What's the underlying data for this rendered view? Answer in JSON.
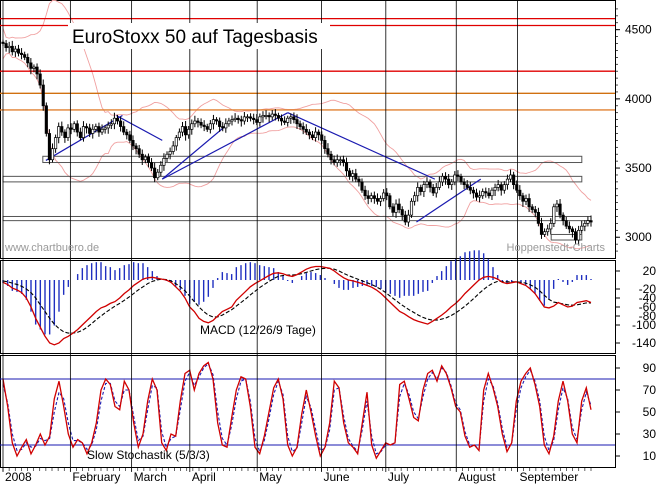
{
  "chart_data": [
    {
      "panel": "price",
      "type": "candlestick",
      "title": "EuroStoxx 50 auf Tagesbasis",
      "source_left": "www.chartbuero.de",
      "source_right": "Hoppenstedt-Charts",
      "yticks": [
        3000,
        3500,
        4000,
        4500
      ],
      "ylim": [
        2850,
        4700
      ],
      "xlim": [
        0,
        192
      ],
      "months": [
        {
          "label": "2008",
          "day": 0
        },
        {
          "label": "February",
          "day": 22
        },
        {
          "label": "March",
          "day": 42
        },
        {
          "label": "April",
          "day": 61
        },
        {
          "label": "May",
          "day": 83
        },
        {
          "label": "June",
          "day": 104
        },
        {
          "label": "July",
          "day": 125
        },
        {
          "label": "August",
          "day": 148
        },
        {
          "label": "September",
          "day": 168
        }
      ],
      "horizontal_lines": [
        {
          "y": 4580,
          "color": "#e00000"
        },
        {
          "y": 4530,
          "color": "#e00000"
        },
        {
          "y": 4200,
          "color": "#e00000"
        },
        {
          "y": 4040,
          "color": "#d07010"
        },
        {
          "y": 3920,
          "color": "#e08030"
        }
      ],
      "support_boxes": [
        {
          "x0": 13,
          "x1": 189,
          "y0": 3540,
          "y1": 3585
        },
        {
          "x0": 0,
          "x1": 189,
          "y0": 3400,
          "y1": 3440
        },
        {
          "x0": 0,
          "x1": 192,
          "y0": 3120,
          "y1": 3150
        },
        {
          "x0": 179,
          "x1": 189,
          "y0": 2980,
          "y1": 3020
        }
      ],
      "trend_lines": [
        {
          "x0": 14,
          "y0": 3555,
          "x1": 39,
          "y1": 3880
        },
        {
          "x0": 52,
          "y0": 3420,
          "x1": 93,
          "y1": 3900
        },
        {
          "x0": 52,
          "y0": 3420,
          "x1": 73,
          "y1": 3810
        },
        {
          "x0": 93,
          "y0": 3900,
          "x1": 141,
          "y1": 3420
        },
        {
          "x0": 135,
          "y0": 3110,
          "x1": 156,
          "y1": 3420
        },
        {
          "x0": 37,
          "y0": 3880,
          "x1": 52,
          "y1": 3700
        }
      ],
      "close": [
        4400,
        4370,
        4380,
        4340,
        4360,
        4330,
        4320,
        4300,
        4260,
        4220,
        4230,
        4180,
        4100,
        3950,
        3750,
        3560,
        3640,
        3720,
        3800,
        3760,
        3720,
        3790,
        3780,
        3820,
        3760,
        3720,
        3800,
        3790,
        3750,
        3780,
        3800,
        3760,
        3780,
        3790,
        3810,
        3820,
        3860,
        3840,
        3800,
        3760,
        3740,
        3700,
        3660,
        3640,
        3600,
        3560,
        3580,
        3540,
        3500,
        3430,
        3470,
        3520,
        3570,
        3600,
        3620,
        3660,
        3720,
        3760,
        3800,
        3740,
        3780,
        3820,
        3840,
        3830,
        3810,
        3800,
        3780,
        3820,
        3850,
        3840,
        3800,
        3790,
        3820,
        3840,
        3850,
        3860,
        3850,
        3840,
        3870,
        3870,
        3860,
        3850,
        3830,
        3870,
        3880,
        3880,
        3870,
        3890,
        3880,
        3860,
        3840,
        3830,
        3860,
        3870,
        3850,
        3820,
        3800,
        3780,
        3760,
        3740,
        3720,
        3760,
        3740,
        3700,
        3640,
        3600,
        3560,
        3540,
        3560,
        3560,
        3540,
        3480,
        3440,
        3460,
        3420,
        3400,
        3340,
        3300,
        3280,
        3300,
        3280,
        3260,
        3280,
        3320,
        3300,
        3220,
        3180,
        3240,
        3200,
        3160,
        3110,
        3160,
        3260,
        3300,
        3360,
        3330,
        3380,
        3400,
        3360,
        3320,
        3360,
        3400,
        3440,
        3420,
        3380,
        3400,
        3450,
        3440,
        3400,
        3380,
        3360,
        3340,
        3320,
        3290,
        3300,
        3330,
        3320,
        3300,
        3340,
        3360,
        3380,
        3340,
        3380,
        3420,
        3450,
        3380,
        3340,
        3300,
        3260,
        3280,
        3220,
        3200,
        3180,
        3100,
        3020,
        3040,
        3060,
        3100,
        3220,
        3240,
        3160,
        3120,
        3080,
        3060,
        3040,
        2980,
        3050,
        3080,
        3100,
        3120,
        3110
      ]
    },
    {
      "panel": "macd",
      "type": "macd",
      "title": "MACD (12/26/9 Tage)",
      "yticks": [
        20,
        -20,
        -40,
        -60,
        -80,
        -100,
        -140
      ],
      "ylim": [
        -160,
        40
      ],
      "macd_line": [
        -5,
        -10,
        -18,
        -22,
        -28,
        -40,
        -60,
        -85,
        -105,
        -125,
        -140,
        -144,
        -140,
        -130,
        -125,
        -118,
        -110,
        -100,
        -90,
        -80,
        -70,
        -62,
        -58,
        -52,
        -48,
        -40,
        -30,
        -22,
        -12,
        -5,
        2,
        5,
        6,
        4,
        2,
        0,
        -5,
        -15,
        -25,
        -40,
        -60,
        -70,
        -85,
        -92,
        -95,
        -90,
        -80,
        -70,
        -65,
        -60,
        -45,
        -35,
        -25,
        -15,
        -8,
        -2,
        4,
        10,
        15,
        16,
        14,
        10,
        8,
        12,
        18,
        24,
        28,
        30,
        30,
        28,
        26,
        20,
        12,
        5,
        0,
        -2,
        -5,
        -8,
        -12,
        -16,
        -22,
        -30,
        -40,
        -50,
        -60,
        -70,
        -75,
        -82,
        -88,
        -92,
        -95,
        -98,
        -92,
        -85,
        -78,
        -70,
        -60,
        -52,
        -42,
        -30,
        -20,
        -10,
        0,
        6,
        8,
        6,
        2,
        -5,
        -8,
        -6,
        -4,
        -8,
        -12,
        -20,
        -30,
        -45,
        -60,
        -62,
        -58,
        -50,
        -55,
        -60,
        -58,
        -50,
        -48,
        -46,
        -50
      ],
      "signal_line": [
        -2,
        -4,
        -7,
        -10,
        -14,
        -20,
        -28,
        -40,
        -55,
        -70,
        -85,
        -98,
        -108,
        -115,
        -118,
        -118,
        -116,
        -112,
        -105,
        -97,
        -88,
        -80,
        -72,
        -65,
        -58,
        -52,
        -45,
        -38,
        -30,
        -22,
        -15,
        -8,
        -3,
        0,
        2,
        1,
        -2,
        -8,
        -15,
        -24,
        -36,
        -48,
        -60,
        -70,
        -78,
        -82,
        -82,
        -78,
        -72,
        -66,
        -58,
        -50,
        -42,
        -33,
        -25,
        -17,
        -10,
        -3,
        3,
        8,
        10,
        11,
        11,
        12,
        14,
        17,
        20,
        23,
        25,
        26,
        26,
        24,
        20,
        15,
        10,
        6,
        2,
        -2,
        -6,
        -10,
        -15,
        -21,
        -28,
        -36,
        -44,
        -52,
        -59,
        -66,
        -72,
        -78,
        -83,
        -87,
        -89,
        -89,
        -87,
        -84,
        -79,
        -73,
        -66,
        -58,
        -49,
        -40,
        -30,
        -21,
        -13,
        -7,
        -3,
        -3,
        -4,
        -4,
        -4,
        -5,
        -7,
        -11,
        -16,
        -24,
        -34,
        -43,
        -49,
        -51,
        -53,
        -55,
        -56,
        -55,
        -53,
        -51,
        -51
      ]
    },
    {
      "panel": "stochastic",
      "type": "line",
      "title": "Slow Stochastik (5/3/3)",
      "yticks": [
        90,
        70,
        50,
        30,
        10
      ],
      "ylim": [
        0,
        100
      ],
      "levels": [
        80,
        20
      ],
      "k_line": [
        80,
        55,
        22,
        10,
        18,
        25,
        12,
        20,
        30,
        20,
        28,
        62,
        78,
        55,
        30,
        18,
        25,
        22,
        12,
        22,
        40,
        70,
        80,
        75,
        55,
        52,
        78,
        70,
        40,
        18,
        30,
        60,
        80,
        70,
        22,
        15,
        30,
        28,
        60,
        85,
        88,
        70,
        85,
        92,
        95,
        80,
        40,
        20,
        18,
        45,
        70,
        82,
        80,
        55,
        18,
        12,
        28,
        50,
        72,
        80,
        62,
        20,
        10,
        18,
        48,
        70,
        50,
        28,
        10,
        18,
        40,
        78,
        72,
        40,
        22,
        18,
        12,
        40,
        68,
        20,
        8,
        15,
        22,
        20,
        22,
        75,
        78,
        62,
        45,
        42,
        70,
        85,
        88,
        78,
        92,
        85,
        72,
        55,
        50,
        28,
        18,
        20,
        15,
        70,
        85,
        72,
        55,
        30,
        14,
        22,
        60,
        78,
        85,
        90,
        75,
        55,
        20,
        12,
        28,
        60,
        78,
        60,
        30,
        22,
        60,
        72,
        52
      ],
      "d_line": [
        75,
        58,
        30,
        15,
        16,
        22,
        18,
        19,
        26,
        24,
        26,
        50,
        68,
        62,
        40,
        24,
        24,
        22,
        16,
        20,
        34,
        60,
        76,
        76,
        60,
        55,
        70,
        70,
        46,
        24,
        28,
        52,
        74,
        72,
        32,
        18,
        26,
        28,
        52,
        78,
        86,
        74,
        82,
        90,
        94,
        84,
        50,
        26,
        20,
        38,
        62,
        78,
        80,
        60,
        26,
        14,
        24,
        44,
        66,
        78,
        66,
        28,
        14,
        17,
        40,
        64,
        54,
        34,
        15,
        17,
        34,
        70,
        72,
        46,
        26,
        19,
        14,
        34,
        60,
        28,
        12,
        14,
        20,
        20,
        22,
        64,
        76,
        66,
        50,
        44,
        64,
        80,
        86,
        80,
        90,
        86,
        74,
        58,
        52,
        32,
        20,
        20,
        16,
        60,
        80,
        74,
        58,
        35,
        18,
        21,
        52,
        72,
        82,
        88,
        78,
        60,
        28,
        15,
        24,
        52,
        72,
        62,
        36,
        25,
        52,
        68,
        56
      ]
    }
  ]
}
